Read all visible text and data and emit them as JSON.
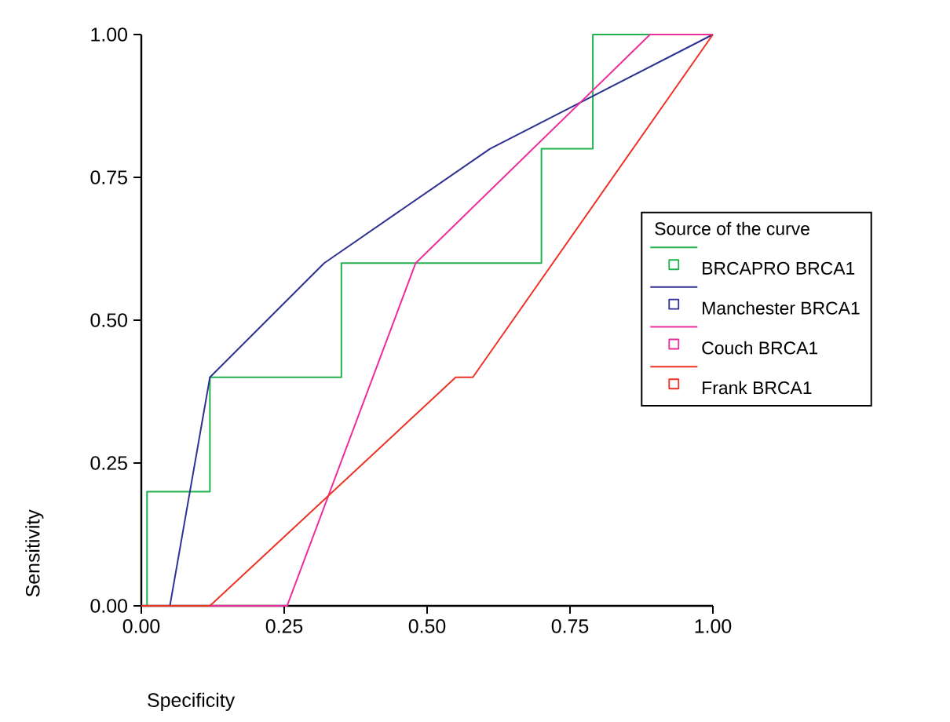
{
  "chart_data": {
    "type": "line",
    "xlabel": "Specificity",
    "ylabel": "Sensitivity",
    "legend_title": "Source of the curve",
    "xlim": [
      0,
      1
    ],
    "ylim": [
      0,
      1
    ],
    "xticks": [
      {
        "value": 0,
        "label": "0.00"
      },
      {
        "value": 0.25,
        "label": "0.25"
      },
      {
        "value": 0.5,
        "label": "0.50"
      },
      {
        "value": 0.75,
        "label": "0.75"
      },
      {
        "value": 1,
        "label": "1.00"
      }
    ],
    "yticks": [
      {
        "value": 0,
        "label": "0.00"
      },
      {
        "value": 0.25,
        "label": "0.25"
      },
      {
        "value": 0.5,
        "label": "0.50"
      },
      {
        "value": 0.75,
        "label": "0.75"
      },
      {
        "value": 1,
        "label": "1.00"
      }
    ],
    "legend": "right",
    "grid": false,
    "series": [
      {
        "name": "BRCAPRO BRCA1",
        "type": "step",
        "color": "#22b14c",
        "x": [
          0,
          0.01,
          0.12,
          0.35,
          0.7,
          0.79,
          1.0
        ],
        "values": [
          0,
          0.2,
          0.4,
          0.6,
          0.8,
          1.0,
          1.0
        ]
      },
      {
        "name": "Manchester BRCA1",
        "type": "line",
        "color": "#2e3192",
        "x": [
          0,
          0.05,
          0.12,
          0.32,
          0.61,
          1.0
        ],
        "values": [
          0,
          0,
          0.4,
          0.6,
          0.8,
          1.0
        ]
      },
      {
        "name": "Couch BRCA1",
        "type": "line",
        "color": "#ec2d9b",
        "x": [
          0,
          0.255,
          0.48,
          0.89,
          1.0
        ],
        "values": [
          0,
          0,
          0.6,
          1.0,
          1.0
        ]
      },
      {
        "name": "Frank BRCA1",
        "type": "line",
        "color": "#ee3224",
        "x": [
          0,
          0.12,
          0.55,
          0.58,
          1.0
        ],
        "values": [
          0,
          0,
          0.4,
          0.4,
          1.0
        ]
      }
    ]
  }
}
